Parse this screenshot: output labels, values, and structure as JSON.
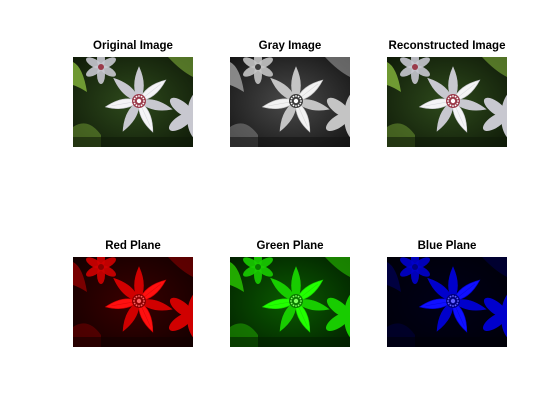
{
  "figure": {
    "panels": [
      {
        "id": "original",
        "title": "Original Image"
      },
      {
        "id": "gray",
        "title": "Gray Image"
      },
      {
        "id": "reconstructed",
        "title": "Reconstructed Image"
      },
      {
        "id": "red",
        "title": "Red Plane"
      },
      {
        "id": "green",
        "title": "Green Plane"
      },
      {
        "id": "blue",
        "title": "Blue Plane"
      }
    ]
  },
  "palettes": {
    "original": {
      "bg": "#2e4a1c",
      "bgDark": "#0f1a08",
      "leaf": "#7fae3a",
      "petal": "#f4f4f6",
      "petalShade": "#c8c8d0",
      "center": "#9a3a4a",
      "centerDot": "#ffffff"
    },
    "gray": {
      "bg": "#4a4a4a",
      "bgDark": "#141414",
      "leaf": "#9a9a9a",
      "petal": "#f2f2f2",
      "petalShade": "#c4c4c4",
      "center": "#3c3c3c",
      "centerDot": "#ffffff"
    },
    "reconstructed": {
      "bg": "#2e4a1c",
      "bgDark": "#0f1a08",
      "leaf": "#7fae3a",
      "petal": "#f4f4f6",
      "petalShade": "#c8c8d0",
      "center": "#9a3a4a",
      "centerDot": "#ffffff"
    },
    "red": {
      "bg": "#3a0000",
      "bgDark": "#120000",
      "leaf": "#8a0000",
      "petal": "#ff1010",
      "petalShade": "#d00000",
      "center": "#8a0000",
      "centerDot": "#ff6060"
    },
    "green": {
      "bg": "#0a5a00",
      "bgDark": "#022000",
      "leaf": "#28c000",
      "petal": "#22ff00",
      "petalShade": "#18cc00",
      "center": "#0a7a00",
      "centerDot": "#80ff60"
    },
    "blue": {
      "bg": "#000018",
      "bgDark": "#000008",
      "leaf": "#00004a",
      "petal": "#1010ff",
      "petalShade": "#0000cc",
      "center": "#000080",
      "centerDot": "#6060ff"
    }
  }
}
